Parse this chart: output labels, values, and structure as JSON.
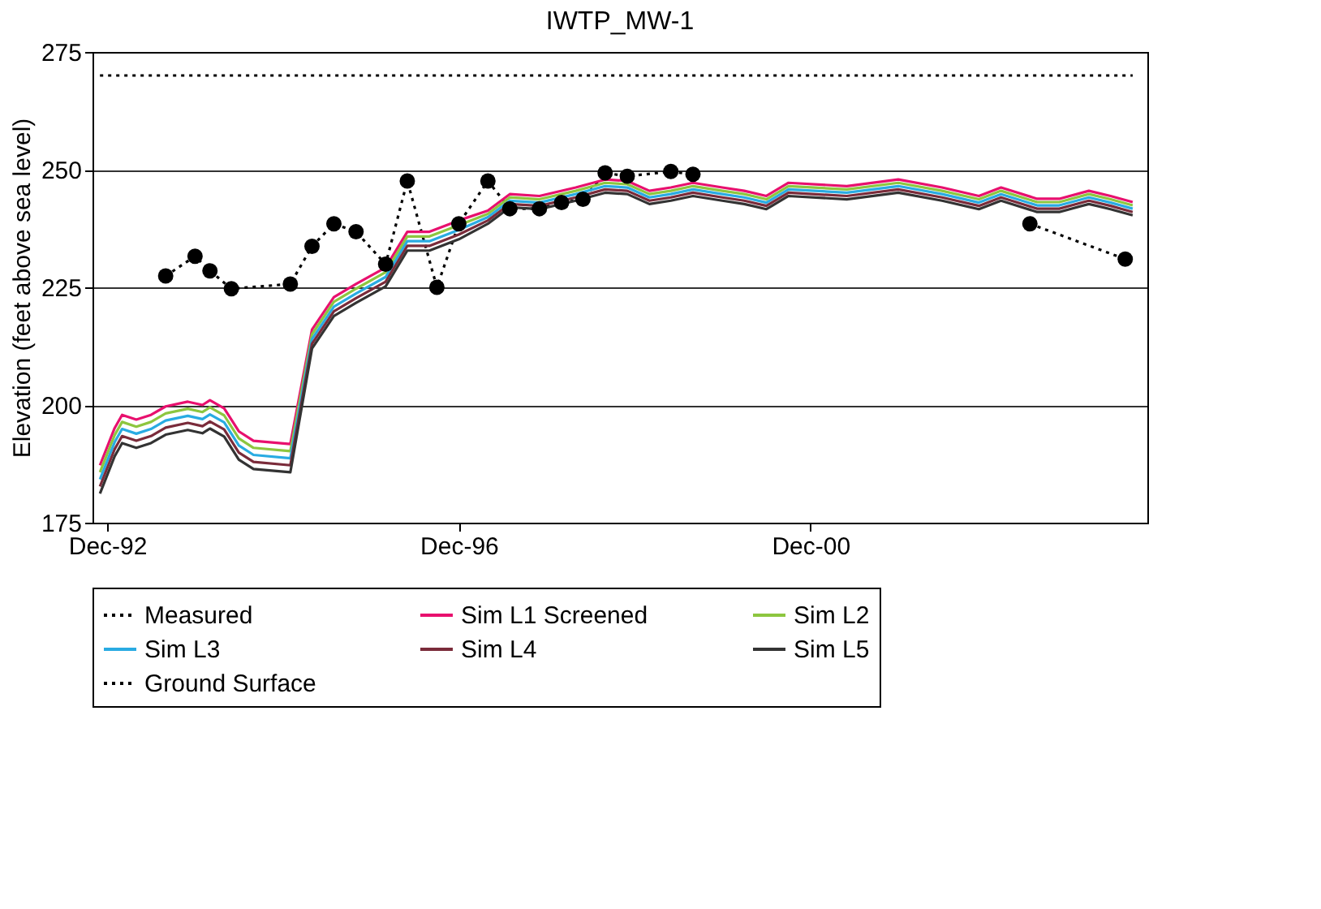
{
  "chart_data": {
    "type": "line",
    "title": "IWTP_MW-1",
    "ylabel": "Elevation (feet above sea level)",
    "ylim": [
      175,
      275
    ],
    "yticks": [
      175,
      200,
      225,
      250,
      275
    ],
    "xlim": [
      "1992-10",
      "2004-10"
    ],
    "xticks": [
      {
        "value": "1992-12",
        "label": "Dec-92"
      },
      {
        "value": "1996-12",
        "label": "Dec-96"
      },
      {
        "value": "2000-12",
        "label": "Dec-00"
      }
    ],
    "grid": "y",
    "legend": "bottom",
    "series": [
      {
        "name": "Measured",
        "color": "#000000",
        "line_style": "dotted",
        "marker": "circle",
        "x": [
          "1993-08",
          "1993-12",
          "1994-02",
          "1994-05",
          "1995-01",
          "1995-04",
          "1995-07",
          "1995-10",
          "1996-02",
          "1996-05",
          "1996-09",
          "1996-12",
          "1997-04",
          "1997-07",
          "1997-11",
          "1998-02",
          "1998-05",
          "1998-08",
          "1998-11",
          "1999-05",
          "1999-08",
          "2001-06",
          "2003-06",
          "2004-07"
        ],
        "values": [
          227.4,
          231.6,
          228.5,
          224.7,
          225.7,
          233.7,
          238.5,
          236.8,
          229.9,
          247.6,
          225.0,
          238.5,
          247.6,
          241.7,
          241.7,
          243.0,
          243.7,
          249.3,
          248.6,
          249.6,
          249.0,
          null,
          238.5,
          231.0
        ]
      },
      {
        "name": "Sim L1 Screened",
        "color": "#e8106e",
        "line_style": "solid",
        "values": [
          187.2,
          195.1,
          197.9,
          196.9,
          197.9,
          199.7,
          200.7,
          200.0,
          201.0,
          199.3,
          194.4,
          192.4,
          191.7,
          216.0,
          222.9,
          225.7,
          229.2,
          236.8,
          236.8,
          239.2,
          241.3,
          244.8,
          244.4,
          246.2,
          247.9,
          247.6,
          245.5,
          246.2,
          247.2,
          246.2,
          245.5,
          244.4,
          247.2,
          246.5,
          247.9,
          246.2,
          244.4,
          246.2,
          243.8,
          243.8,
          245.5,
          244.4,
          243.1
        ]
      },
      {
        "name": "Sim L2",
        "color": "#8dc63f",
        "line_style": "solid",
        "values": [
          185.7,
          193.6,
          196.4,
          195.4,
          196.4,
          198.2,
          199.2,
          198.5,
          199.5,
          197.8,
          192.9,
          190.9,
          190.2,
          215.0,
          221.9,
          224.7,
          228.2,
          235.8,
          235.8,
          238.2,
          240.6,
          244.1,
          243.7,
          245.5,
          247.2,
          246.9,
          244.8,
          245.5,
          246.5,
          245.5,
          244.8,
          243.7,
          246.5,
          245.8,
          247.2,
          245.5,
          243.7,
          245.5,
          243.1,
          243.1,
          244.8,
          243.7,
          242.4
        ]
      },
      {
        "name": "Sim L3",
        "color": "#29abe2",
        "line_style": "solid",
        "values": [
          184.2,
          192.1,
          194.9,
          193.9,
          194.9,
          196.7,
          197.7,
          197.0,
          198.0,
          196.3,
          191.4,
          189.4,
          188.7,
          214.0,
          220.9,
          223.7,
          227.2,
          234.8,
          234.8,
          237.2,
          239.9,
          243.4,
          243.0,
          244.8,
          246.5,
          246.2,
          244.1,
          244.8,
          245.8,
          244.8,
          244.1,
          243.0,
          245.8,
          245.1,
          246.5,
          244.8,
          243.0,
          244.8,
          242.4,
          242.4,
          244.1,
          243.0,
          241.7
        ]
      },
      {
        "name": "Sim L4",
        "color": "#7a2b3a",
        "line_style": "solid",
        "values": [
          182.7,
          190.6,
          193.4,
          192.4,
          193.4,
          195.2,
          196.2,
          195.5,
          196.5,
          194.8,
          189.9,
          187.9,
          187.2,
          213.0,
          219.9,
          222.7,
          226.2,
          233.8,
          233.8,
          236.2,
          239.2,
          242.7,
          242.3,
          244.1,
          245.8,
          245.5,
          243.4,
          244.1,
          245.1,
          244.1,
          243.4,
          242.3,
          245.1,
          244.4,
          245.8,
          244.1,
          242.3,
          244.1,
          241.7,
          241.7,
          243.4,
          242.3,
          241.0
        ]
      },
      {
        "name": "Sim L5",
        "color": "#333333",
        "line_style": "solid",
        "values": [
          181.2,
          189.1,
          191.9,
          190.9,
          191.9,
          193.7,
          194.7,
          194.0,
          195.0,
          193.3,
          188.4,
          186.4,
          185.7,
          212.0,
          218.9,
          221.7,
          225.2,
          232.8,
          232.8,
          235.2,
          238.5,
          242.0,
          241.6,
          243.4,
          245.1,
          244.8,
          242.7,
          243.4,
          244.4,
          243.4,
          242.7,
          241.6,
          244.4,
          243.7,
          245.1,
          243.4,
          241.6,
          243.4,
          241.0,
          241.0,
          242.7,
          241.6,
          240.3
        ]
      },
      {
        "name": "Ground Surface",
        "color": "#000000",
        "line_style": "dotted",
        "x": [
          "1992-11",
          "2004-08"
        ],
        "values": [
          270,
          270
        ]
      }
    ],
    "x": [
      "1992-11",
      "1993-01",
      "1993-02",
      "1993-04",
      "1993-06",
      "1993-08",
      "1993-11",
      "1994-01",
      "1994-02",
      "1994-04",
      "1994-06",
      "1994-08",
      "1995-01",
      "1995-04",
      "1995-07",
      "1995-10",
      "1996-02",
      "1996-05",
      "1996-08",
      "1996-12",
      "1997-04",
      "1997-07",
      "1997-11",
      "1998-04",
      "1998-08",
      "1998-11",
      "1999-02",
      "1999-05",
      "1999-08",
      "1999-12",
      "2000-03",
      "2000-06",
      "2000-09",
      "2001-05",
      "2001-12",
      "2002-06",
      "2002-11",
      "2003-02",
      "2003-07",
      "2003-10",
      "2004-02",
      "2004-05",
      "2004-08"
    ]
  }
}
